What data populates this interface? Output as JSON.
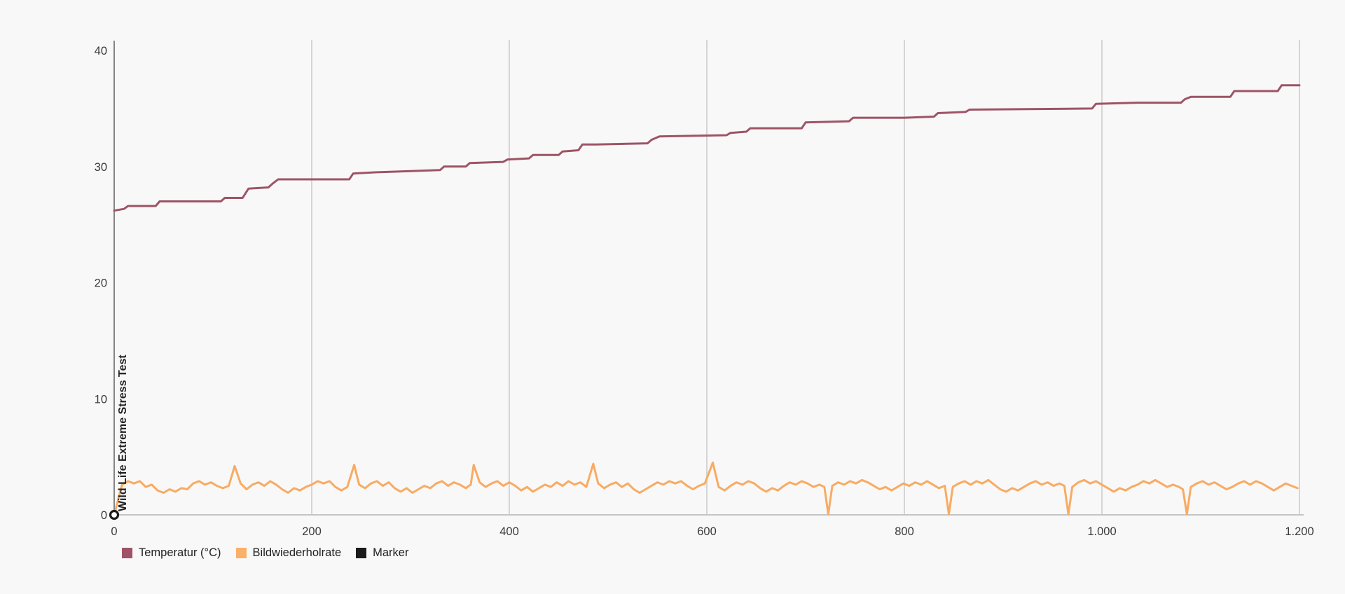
{
  "chart_data": {
    "type": "line",
    "title_vertical": "Wild Life Extreme Stress Test",
    "xlim": [
      0,
      1200
    ],
    "ylim": [
      0,
      40
    ],
    "grid": "vertical-only",
    "x_gridlines": [
      200,
      400,
      600,
      800,
      1000,
      1200
    ],
    "x_ticks": [
      {
        "value": 0,
        "label": "0"
      },
      {
        "value": 200,
        "label": "200"
      },
      {
        "value": 400,
        "label": "400"
      },
      {
        "value": 600,
        "label": "600"
      },
      {
        "value": 800,
        "label": "800"
      },
      {
        "value": 1000,
        "label": "1.000"
      },
      {
        "value": 1200,
        "label": "1.200"
      }
    ],
    "y_ticks": [
      {
        "value": 0,
        "label": "0"
      },
      {
        "value": 10,
        "label": "10"
      },
      {
        "value": 20,
        "label": "20"
      },
      {
        "value": 30,
        "label": "30"
      },
      {
        "value": 40,
        "label": "40"
      }
    ],
    "colors": {
      "grid": "#c9c9c9",
      "x_axis": "#c4c4c4",
      "y_axis": "#5f5f5f",
      "tick_text": "#3a3a3a",
      "title_text": "#212121"
    },
    "legend_position": "bottom-left",
    "series": [
      {
        "name": "Temperatur (°C)",
        "color": "#9e5366",
        "width": 3,
        "points": [
          [
            0,
            26.2
          ],
          [
            10,
            26.35
          ],
          [
            14,
            26.6
          ],
          [
            42,
            26.6
          ],
          [
            46,
            27.0
          ],
          [
            108,
            27.0
          ],
          [
            112,
            27.3
          ],
          [
            130,
            27.3
          ],
          [
            136,
            28.1
          ],
          [
            156,
            28.2
          ],
          [
            160,
            28.5
          ],
          [
            166,
            28.9
          ],
          [
            238,
            28.9
          ],
          [
            242,
            29.4
          ],
          [
            264,
            29.5
          ],
          [
            298,
            29.6
          ],
          [
            330,
            29.7
          ],
          [
            334,
            30.0
          ],
          [
            356,
            30.0
          ],
          [
            360,
            30.3
          ],
          [
            394,
            30.4
          ],
          [
            398,
            30.6
          ],
          [
            420,
            30.7
          ],
          [
            424,
            31.0
          ],
          [
            450,
            31.0
          ],
          [
            454,
            31.3
          ],
          [
            470,
            31.4
          ],
          [
            474,
            31.9
          ],
          [
            488,
            31.9
          ],
          [
            540,
            32.0
          ],
          [
            544,
            32.3
          ],
          [
            552,
            32.6
          ],
          [
            620,
            32.7
          ],
          [
            624,
            32.9
          ],
          [
            640,
            33.0
          ],
          [
            644,
            33.3
          ],
          [
            696,
            33.3
          ],
          [
            700,
            33.8
          ],
          [
            744,
            33.9
          ],
          [
            748,
            34.2
          ],
          [
            800,
            34.2
          ],
          [
            830,
            34.3
          ],
          [
            834,
            34.6
          ],
          [
            862,
            34.7
          ],
          [
            866,
            34.9
          ],
          [
            990,
            35.0
          ],
          [
            994,
            35.4
          ],
          [
            1036,
            35.5
          ],
          [
            1080,
            35.5
          ],
          [
            1084,
            35.8
          ],
          [
            1090,
            36.0
          ],
          [
            1130,
            36.0
          ],
          [
            1134,
            36.5
          ],
          [
            1178,
            36.5
          ],
          [
            1182,
            37.0
          ],
          [
            1200,
            37.0
          ]
        ]
      },
      {
        "name": "Bildwiederholrate",
        "color": "#f8ab63",
        "width": 3,
        "points": [
          [
            0,
            0
          ],
          [
            4,
            1.3
          ],
          [
            8,
            2.6
          ],
          [
            14,
            2.9
          ],
          [
            20,
            2.7
          ],
          [
            26,
            2.9
          ],
          [
            32,
            2.4
          ],
          [
            38,
            2.6
          ],
          [
            44,
            2.1
          ],
          [
            50,
            1.9
          ],
          [
            56,
            2.2
          ],
          [
            62,
            2.0
          ],
          [
            68,
            2.3
          ],
          [
            74,
            2.2
          ],
          [
            80,
            2.7
          ],
          [
            86,
            2.9
          ],
          [
            92,
            2.6
          ],
          [
            98,
            2.8
          ],
          [
            104,
            2.5
          ],
          [
            110,
            2.3
          ],
          [
            116,
            2.5
          ],
          [
            122,
            4.2
          ],
          [
            128,
            2.7
          ],
          [
            134,
            2.2
          ],
          [
            140,
            2.6
          ],
          [
            146,
            2.8
          ],
          [
            152,
            2.5
          ],
          [
            158,
            2.9
          ],
          [
            164,
            2.6
          ],
          [
            170,
            2.2
          ],
          [
            176,
            1.9
          ],
          [
            182,
            2.3
          ],
          [
            188,
            2.1
          ],
          [
            194,
            2.4
          ],
          [
            200,
            2.6
          ],
          [
            206,
            2.9
          ],
          [
            212,
            2.7
          ],
          [
            218,
            2.9
          ],
          [
            224,
            2.4
          ],
          [
            230,
            2.1
          ],
          [
            236,
            2.4
          ],
          [
            243,
            4.3
          ],
          [
            248,
            2.6
          ],
          [
            254,
            2.3
          ],
          [
            260,
            2.7
          ],
          [
            266,
            2.9
          ],
          [
            272,
            2.5
          ],
          [
            278,
            2.8
          ],
          [
            284,
            2.3
          ],
          [
            290,
            2.0
          ],
          [
            296,
            2.3
          ],
          [
            302,
            1.9
          ],
          [
            308,
            2.2
          ],
          [
            314,
            2.5
          ],
          [
            320,
            2.3
          ],
          [
            326,
            2.7
          ],
          [
            332,
            2.9
          ],
          [
            338,
            2.5
          ],
          [
            344,
            2.8
          ],
          [
            350,
            2.6
          ],
          [
            356,
            2.3
          ],
          [
            361,
            2.6
          ],
          [
            364,
            4.3
          ],
          [
            370,
            2.8
          ],
          [
            376,
            2.4
          ],
          [
            382,
            2.7
          ],
          [
            388,
            2.9
          ],
          [
            394,
            2.5
          ],
          [
            400,
            2.8
          ],
          [
            406,
            2.5
          ],
          [
            412,
            2.1
          ],
          [
            418,
            2.4
          ],
          [
            424,
            2.0
          ],
          [
            430,
            2.3
          ],
          [
            436,
            2.6
          ],
          [
            442,
            2.4
          ],
          [
            448,
            2.8
          ],
          [
            454,
            2.5
          ],
          [
            460,
            2.9
          ],
          [
            466,
            2.6
          ],
          [
            472,
            2.8
          ],
          [
            478,
            2.4
          ],
          [
            485,
            4.4
          ],
          [
            490,
            2.7
          ],
          [
            496,
            2.3
          ],
          [
            502,
            2.6
          ],
          [
            508,
            2.8
          ],
          [
            514,
            2.4
          ],
          [
            520,
            2.7
          ],
          [
            526,
            2.2
          ],
          [
            532,
            1.9
          ],
          [
            538,
            2.2
          ],
          [
            544,
            2.5
          ],
          [
            550,
            2.8
          ],
          [
            556,
            2.6
          ],
          [
            562,
            2.9
          ],
          [
            568,
            2.7
          ],
          [
            574,
            2.9
          ],
          [
            580,
            2.5
          ],
          [
            586,
            2.2
          ],
          [
            592,
            2.5
          ],
          [
            598,
            2.7
          ],
          [
            606,
            4.5
          ],
          [
            612,
            2.4
          ],
          [
            618,
            2.1
          ],
          [
            624,
            2.5
          ],
          [
            630,
            2.8
          ],
          [
            636,
            2.6
          ],
          [
            642,
            2.9
          ],
          [
            648,
            2.7
          ],
          [
            654,
            2.3
          ],
          [
            660,
            2.0
          ],
          [
            666,
            2.3
          ],
          [
            672,
            2.1
          ],
          [
            678,
            2.5
          ],
          [
            684,
            2.8
          ],
          [
            690,
            2.6
          ],
          [
            696,
            2.9
          ],
          [
            702,
            2.7
          ],
          [
            708,
            2.4
          ],
          [
            714,
            2.6
          ],
          [
            719,
            2.4
          ],
          [
            723,
            0.05
          ],
          [
            727,
            2.5
          ],
          [
            733,
            2.8
          ],
          [
            739,
            2.6
          ],
          [
            745,
            2.9
          ],
          [
            751,
            2.7
          ],
          [
            757,
            3.0
          ],
          [
            763,
            2.8
          ],
          [
            769,
            2.5
          ],
          [
            775,
            2.2
          ],
          [
            781,
            2.4
          ],
          [
            787,
            2.1
          ],
          [
            793,
            2.4
          ],
          [
            799,
            2.7
          ],
          [
            805,
            2.5
          ],
          [
            811,
            2.8
          ],
          [
            817,
            2.6
          ],
          [
            823,
            2.9
          ],
          [
            829,
            2.6
          ],
          [
            835,
            2.3
          ],
          [
            841,
            2.5
          ],
          [
            845,
            0.05
          ],
          [
            849,
            2.4
          ],
          [
            855,
            2.7
          ],
          [
            861,
            2.9
          ],
          [
            867,
            2.6
          ],
          [
            873,
            2.9
          ],
          [
            879,
            2.7
          ],
          [
            885,
            3.0
          ],
          [
            891,
            2.6
          ],
          [
            897,
            2.2
          ],
          [
            903,
            2.0
          ],
          [
            909,
            2.3
          ],
          [
            915,
            2.1
          ],
          [
            921,
            2.4
          ],
          [
            927,
            2.7
          ],
          [
            933,
            2.9
          ],
          [
            939,
            2.6
          ],
          [
            945,
            2.8
          ],
          [
            951,
            2.5
          ],
          [
            957,
            2.7
          ],
          [
            962,
            2.5
          ],
          [
            966,
            0.05
          ],
          [
            970,
            2.4
          ],
          [
            976,
            2.8
          ],
          [
            982,
            3.0
          ],
          [
            988,
            2.7
          ],
          [
            994,
            2.9
          ],
          [
            1000,
            2.6
          ],
          [
            1006,
            2.3
          ],
          [
            1012,
            2.0
          ],
          [
            1018,
            2.3
          ],
          [
            1024,
            2.1
          ],
          [
            1030,
            2.4
          ],
          [
            1036,
            2.6
          ],
          [
            1042,
            2.9
          ],
          [
            1048,
            2.7
          ],
          [
            1054,
            3.0
          ],
          [
            1060,
            2.7
          ],
          [
            1066,
            2.4
          ],
          [
            1072,
            2.6
          ],
          [
            1078,
            2.4
          ],
          [
            1082,
            2.2
          ],
          [
            1086,
            0.05
          ],
          [
            1090,
            2.4
          ],
          [
            1096,
            2.7
          ],
          [
            1102,
            2.9
          ],
          [
            1108,
            2.6
          ],
          [
            1114,
            2.8
          ],
          [
            1120,
            2.5
          ],
          [
            1126,
            2.2
          ],
          [
            1132,
            2.4
          ],
          [
            1138,
            2.7
          ],
          [
            1144,
            2.9
          ],
          [
            1150,
            2.6
          ],
          [
            1156,
            2.9
          ],
          [
            1162,
            2.7
          ],
          [
            1168,
            2.4
          ],
          [
            1174,
            2.1
          ],
          [
            1180,
            2.4
          ],
          [
            1186,
            2.7
          ],
          [
            1192,
            2.5
          ],
          [
            1198,
            2.3
          ]
        ]
      },
      {
        "name": "Marker",
        "color": "#1a1a1a",
        "style": "open-circle",
        "points": [
          [
            0,
            0
          ]
        ]
      }
    ]
  },
  "legend": {
    "items": [
      {
        "label": "Temperatur (°C)",
        "color": "#a05266"
      },
      {
        "label": "Bildwiederholrate",
        "color": "#fbb06a"
      },
      {
        "label": "Marker",
        "color": "#1a1a1a"
      }
    ]
  }
}
